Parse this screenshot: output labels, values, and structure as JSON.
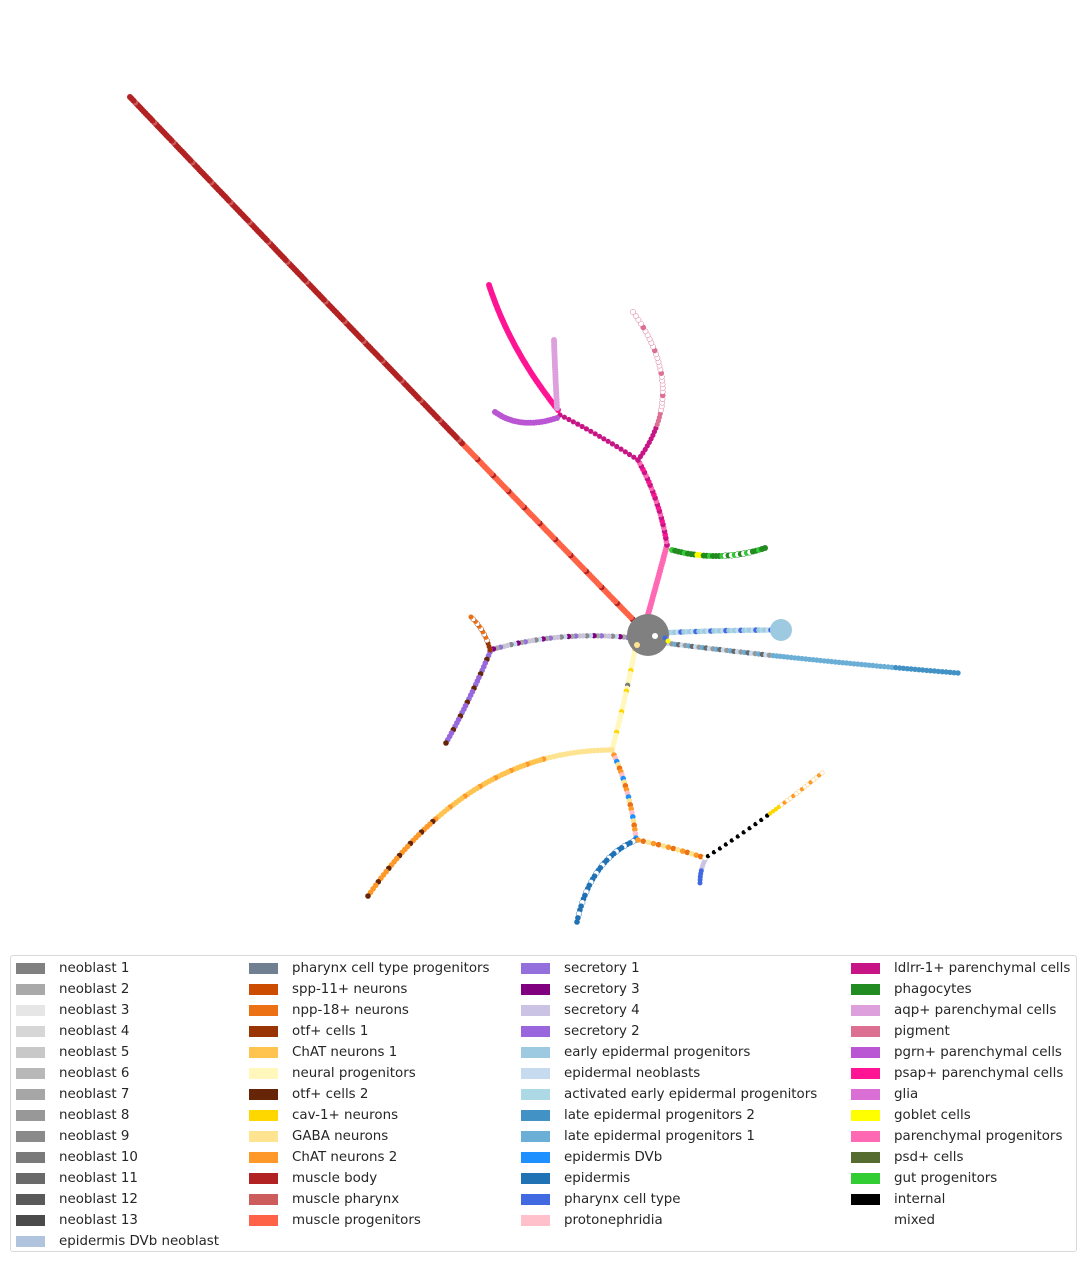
{
  "chart_data": {
    "type": "scatter",
    "description_kind": "trajectory tree with cells colored by cell type",
    "title": "",
    "xlabel": "",
    "ylabel": "",
    "grid": false,
    "axes_visible": false,
    "legend_placement": "bottom",
    "legend_columns": 4,
    "legend": [
      {
        "label": "neoblast 1",
        "color": "#808080"
      },
      {
        "label": "neoblast 2",
        "color": "#a9a9a9"
      },
      {
        "label": "neoblast 3",
        "color": "#e6e6e6"
      },
      {
        "label": "neoblast 4",
        "color": "#d6d6d6"
      },
      {
        "label": "neoblast 5",
        "color": "#c8c8c8"
      },
      {
        "label": "neoblast 6",
        "color": "#b8b8b8"
      },
      {
        "label": "neoblast 7",
        "color": "#a6a6a6"
      },
      {
        "label": "neoblast 8",
        "color": "#989898"
      },
      {
        "label": "neoblast 9",
        "color": "#8a8a8a"
      },
      {
        "label": "neoblast 10",
        "color": "#7a7a7a"
      },
      {
        "label": "neoblast 11",
        "color": "#6a6a6a"
      },
      {
        "label": "neoblast 12",
        "color": "#5a5a5a"
      },
      {
        "label": "neoblast 13",
        "color": "#4b4b4b"
      },
      {
        "label": "epidermis DVb neoblast",
        "color": "#b0c4de"
      },
      {
        "label": "pharynx cell type progenitors",
        "color": "#708090"
      },
      {
        "label": "spp-11+ neurons",
        "color": "#cc4c02"
      },
      {
        "label": "npp-18+ neurons",
        "color": "#ec7014"
      },
      {
        "label": "otf+ cells 1",
        "color": "#993404"
      },
      {
        "label": "ChAT neurons 1",
        "color": "#fec44f"
      },
      {
        "label": "neural progenitors",
        "color": "#fff7bc"
      },
      {
        "label": "otf+ cells 2",
        "color": "#662506"
      },
      {
        "label": "cav-1+ neurons",
        "color": "#ffd700"
      },
      {
        "label": "GABA neurons",
        "color": "#fee391"
      },
      {
        "label": "ChAT neurons 2",
        "color": "#fe9929"
      },
      {
        "label": "muscle body",
        "color": "#b22222"
      },
      {
        "label": "muscle pharynx",
        "color": "#cd5c5c"
      },
      {
        "label": "muscle progenitors",
        "color": "#ff6347"
      },
      {
        "label": "secretory 1",
        "color": "#9370db"
      },
      {
        "label": "secretory 3",
        "color": "#800080"
      },
      {
        "label": "secretory 4",
        "color": "#cbc3e3"
      },
      {
        "label": "secretory 2",
        "color": "#9966dd"
      },
      {
        "label": "early epidermal progenitors",
        "color": "#9ecae1"
      },
      {
        "label": "epidermal neoblasts",
        "color": "#c6dbef"
      },
      {
        "label": "activated early epidermal progenitors",
        "color": "#add8e6"
      },
      {
        "label": "late epidermal progenitors 2",
        "color": "#4292c6"
      },
      {
        "label": "late epidermal progenitors 1",
        "color": "#6baed6"
      },
      {
        "label": "epidermis DVb",
        "color": "#1e90ff"
      },
      {
        "label": "epidermis",
        "color": "#2171b5"
      },
      {
        "label": "pharynx cell type",
        "color": "#4169e1"
      },
      {
        "label": "protonephridia",
        "color": "#ffc0cb"
      },
      {
        "label": "ldlrr-1+ parenchymal cells",
        "color": "#c71585"
      },
      {
        "label": "phagocytes",
        "color": "#228b22"
      },
      {
        "label": "aqp+ parenchymal cells",
        "color": "#dda0dd"
      },
      {
        "label": "pigment",
        "color": "#db7093"
      },
      {
        "label": "pgrn+ parenchymal cells",
        "color": "#ba55d3"
      },
      {
        "label": "psap+ parenchymal cells",
        "color": "#ff1493"
      },
      {
        "label": "glia",
        "color": "#da70d6"
      },
      {
        "label": "goblet cells",
        "color": "#ffff00"
      },
      {
        "label": "parenchymal progenitors",
        "color": "#ff69b4"
      },
      {
        "label": "psd+ cells",
        "color": "#556b2f"
      },
      {
        "label": "gut progenitors",
        "color": "#32cd32"
      },
      {
        "label": "internal",
        "color": "#000000"
      },
      {
        "label": "mixed",
        "color": "#ffffff"
      }
    ]
  }
}
